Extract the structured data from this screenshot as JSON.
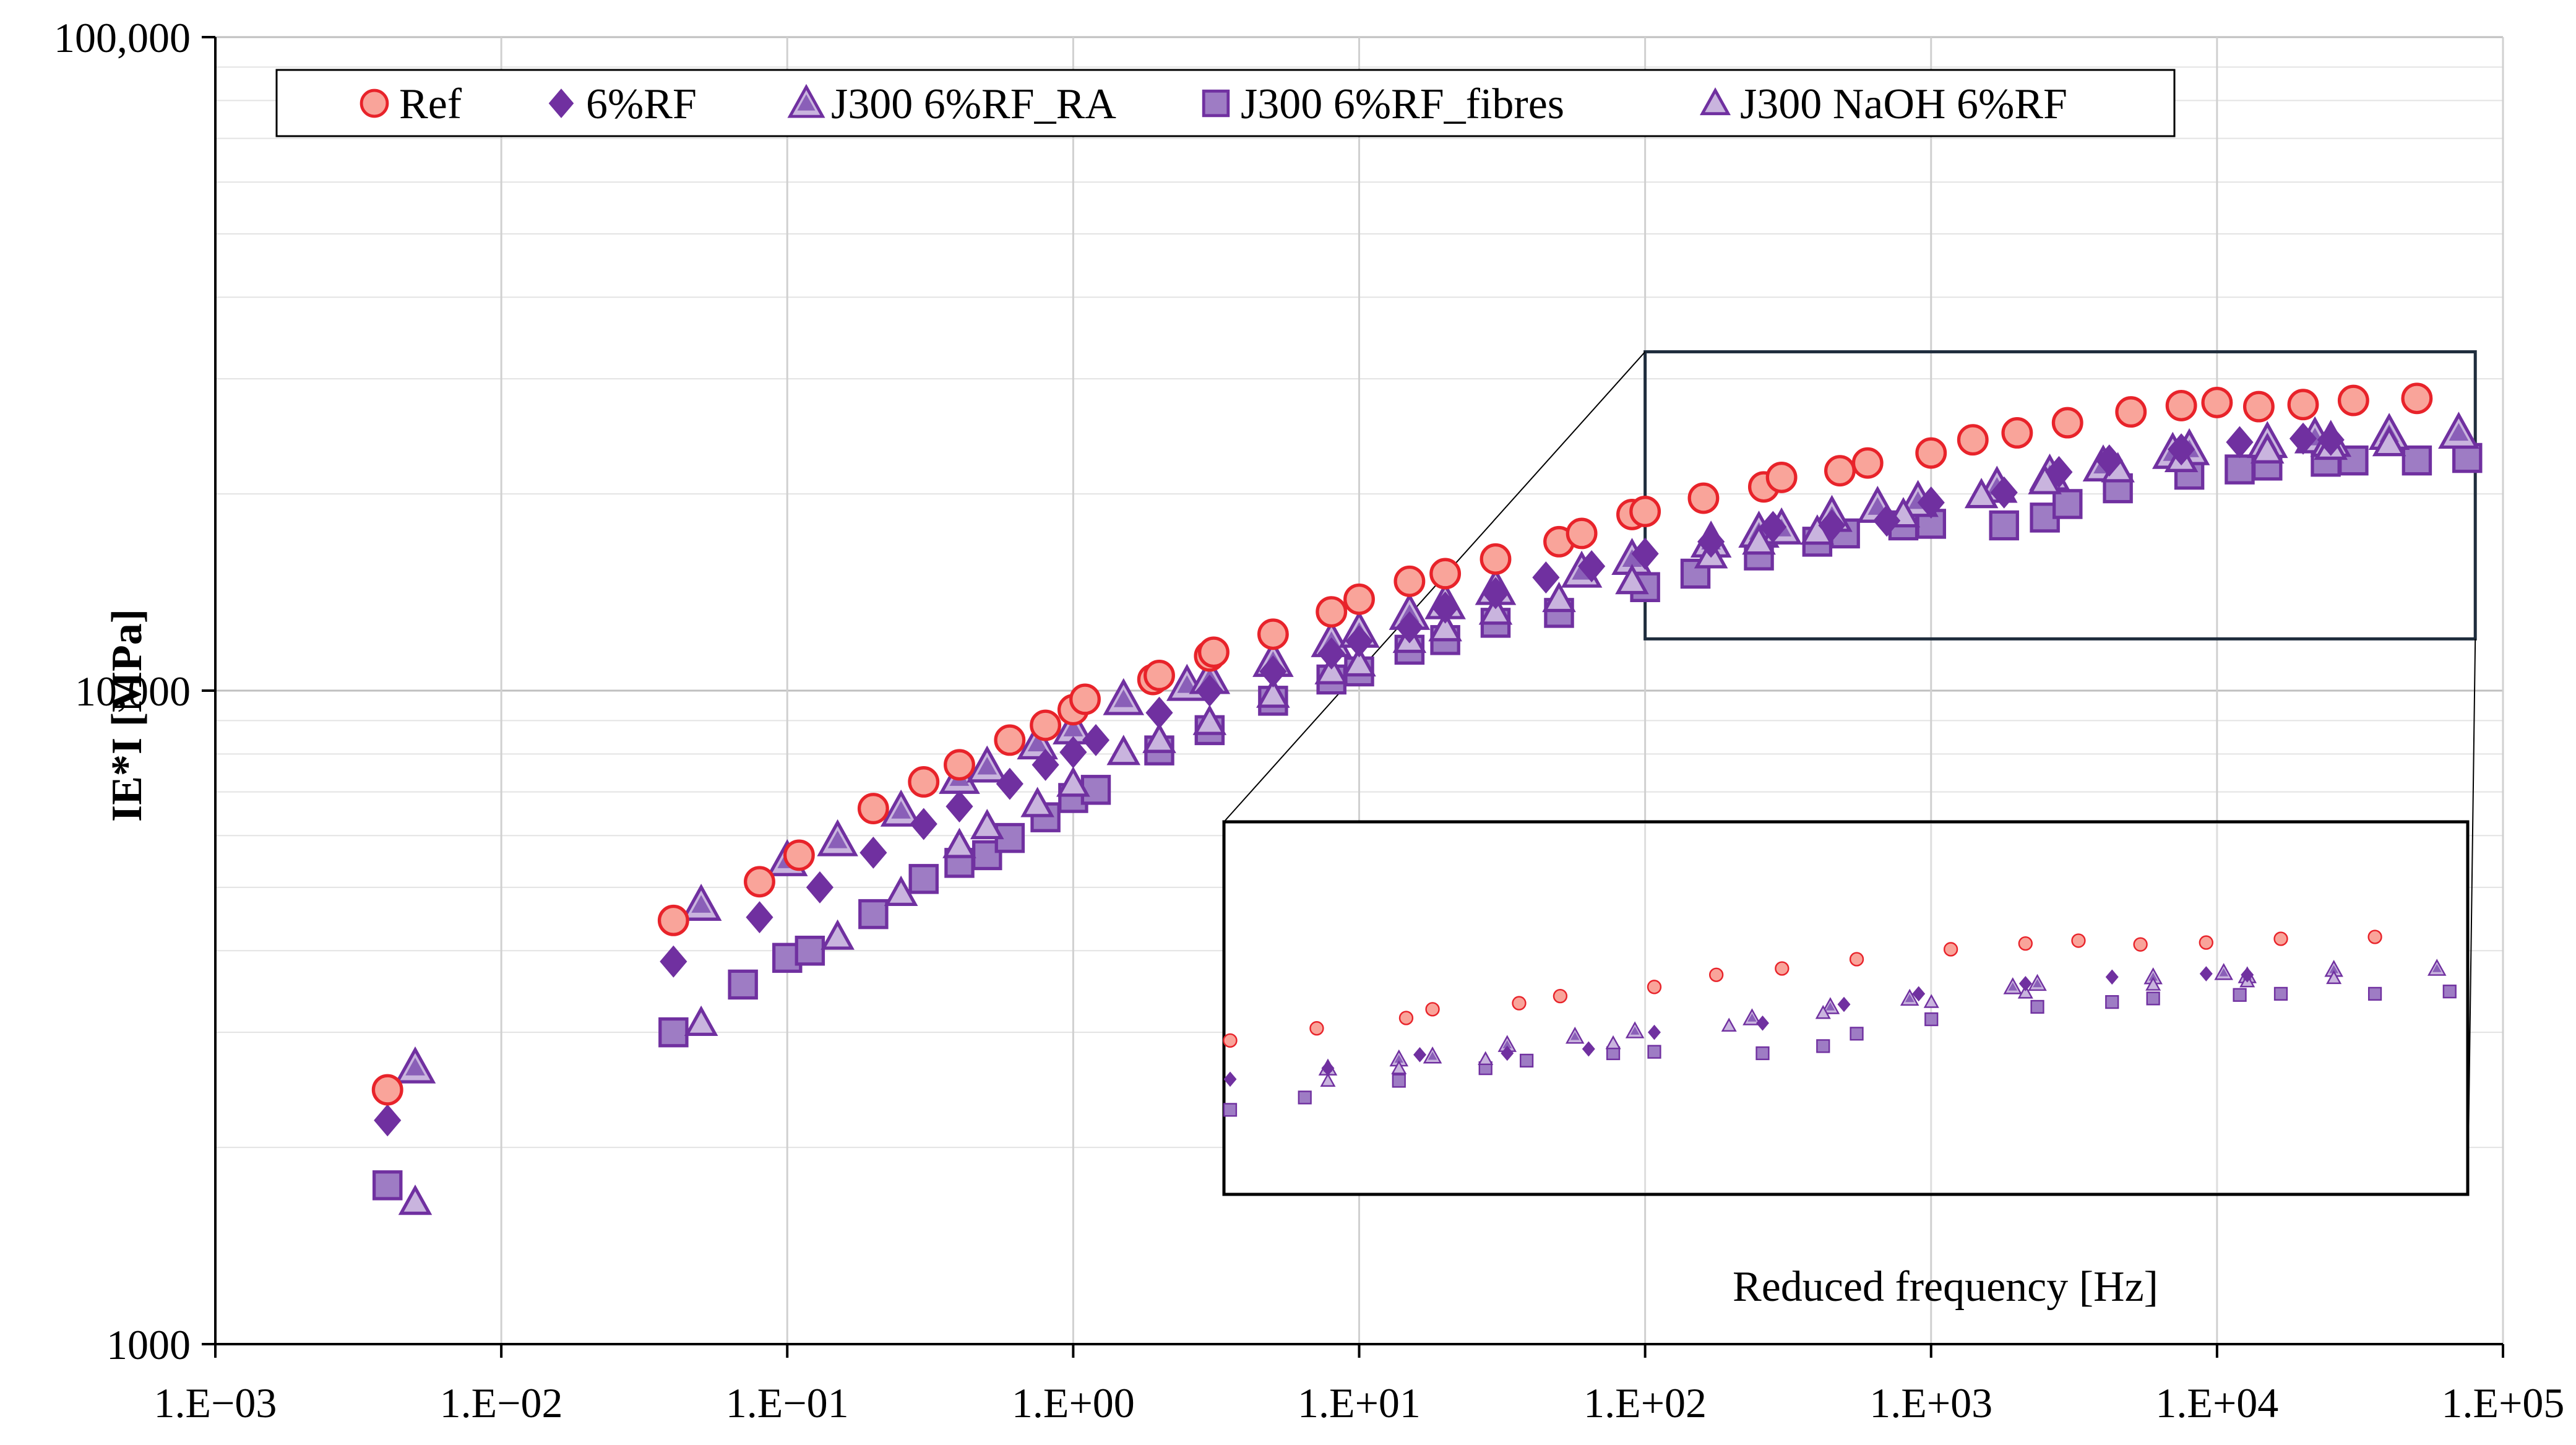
{
  "chart_data": {
    "type": "scatter",
    "title": "",
    "xlabel": "Reduced frequency [Hz]",
    "ylabel": "IE*I [MPa]",
    "xscale": "log",
    "yscale": "log",
    "xlim": [
      0.001,
      100000
    ],
    "ylim": [
      1000,
      100000
    ],
    "grid": "horizontal-major-and-minor",
    "legend_position": "top",
    "x_tick_labels": [
      "1.E−03",
      "1.E−02",
      "1.E−01",
      "1.E+00",
      "1.E+01",
      "1.E+02",
      "1.E+03",
      "1.E+04",
      "1.E+05"
    ],
    "y_tick_labels": [
      "1000",
      "10,000",
      "100,000"
    ],
    "zoom_region": {
      "xlim": [
        100,
        80000
      ],
      "ylim": [
        12000,
        33000
      ]
    },
    "series": [
      {
        "name": "Ref",
        "marker": "circle",
        "color": "#e8232a",
        "fill": "#f9a49a",
        "x": [
          0.004,
          0.04,
          0.08,
          0.11,
          0.2,
          0.3,
          0.4,
          0.6,
          0.8,
          1.0,
          1.1,
          1.9,
          2.0,
          3.0,
          3.1,
          5.0,
          8.0,
          10,
          15,
          20,
          30,
          50,
          60,
          90,
          100,
          160,
          260,
          300,
          480,
          600,
          1000,
          1400,
          2000,
          3000,
          5000,
          7500,
          10000,
          14000,
          20000,
          30000,
          50000
        ],
        "y": [
          2450,
          4450,
          5100,
          5600,
          6600,
          7250,
          7700,
          8400,
          8850,
          9350,
          9700,
          10400,
          10550,
          11300,
          11450,
          12200,
          13200,
          13800,
          14700,
          15100,
          15900,
          16900,
          17400,
          18600,
          18800,
          19700,
          20500,
          21200,
          21700,
          22300,
          23100,
          24200,
          24800,
          25700,
          26700,
          27300,
          27600,
          27200,
          27400,
          27800,
          28000
        ]
      },
      {
        "name": "6%RF",
        "marker": "diamond",
        "color": "#7030a0",
        "fill": "#7030a0",
        "x": [
          0.004,
          0.04,
          0.08,
          0.13,
          0.2,
          0.3,
          0.4,
          0.6,
          0.8,
          1.0,
          1.2,
          2.0,
          3.0,
          5.0,
          8.0,
          10,
          15,
          20,
          30,
          45,
          65,
          100,
          170,
          280,
          450,
          700,
          1000,
          1800,
          2800,
          4200,
          7500,
          12000,
          20000,
          25000
        ],
        "y": [
          2200,
          3850,
          4500,
          5000,
          5650,
          6250,
          6650,
          7200,
          7700,
          8050,
          8400,
          9250,
          10000,
          10700,
          11400,
          11900,
          12500,
          13400,
          14100,
          14900,
          15500,
          16200,
          16900,
          17800,
          17900,
          18200,
          19400,
          20100,
          21600,
          22500,
          23400,
          24000,
          24300,
          24200
        ]
      },
      {
        "name": "J300 6%RF_RA",
        "marker": "triangle",
        "color": "#7030a0",
        "fill": "#c9b4de",
        "x": [
          0.005,
          0.05,
          0.1,
          0.15,
          0.25,
          0.4,
          0.5,
          0.75,
          1.0,
          1.5,
          2.5,
          3.0,
          5.0,
          8.0,
          10,
          15,
          20,
          30,
          60,
          90,
          170,
          250,
          300,
          450,
          650,
          900,
          1700,
          2600,
          4000,
          7000,
          8000,
          15000,
          22000,
          25000,
          40000,
          70000
        ],
        "y": [
          2650,
          4700,
          5500,
          5900,
          6550,
          7350,
          7650,
          8300,
          8750,
          9700,
          10200,
          10450,
          11100,
          11900,
          12300,
          13100,
          13600,
          14300,
          15200,
          15900,
          16900,
          17500,
          17700,
          18500,
          19100,
          19500,
          20500,
          21400,
          22100,
          23100,
          23400,
          24000,
          24400,
          24100,
          24700,
          24800
        ]
      },
      {
        "name": "J300 6%RF_fibres",
        "marker": "square",
        "color": "#7030a0",
        "fill": "#9e7cc4",
        "x": [
          0.004,
          0.04,
          0.07,
          0.1,
          0.12,
          0.2,
          0.3,
          0.4,
          0.5,
          0.6,
          0.8,
          1.0,
          1.2,
          2.0,
          3.0,
          5.0,
          8.0,
          10,
          15,
          20,
          30,
          50,
          100,
          150,
          250,
          400,
          500,
          800,
          1000,
          1800,
          2500,
          3000,
          4500,
          8000,
          12000,
          15000,
          24000,
          30000,
          50000,
          75000
        ],
        "y": [
          1750,
          3000,
          3550,
          3900,
          4000,
          4550,
          5150,
          5450,
          5600,
          5950,
          6400,
          6850,
          7050,
          8100,
          8700,
          9650,
          10400,
          10700,
          11550,
          11950,
          12700,
          13150,
          14400,
          15100,
          16100,
          16900,
          17400,
          17900,
          18000,
          17900,
          18400,
          19300,
          20400,
          21400,
          21800,
          22100,
          22400,
          22500,
          22500,
          22700
        ]
      },
      {
        "name": "J300 NaOH 6%RF",
        "marker": "triangle-small",
        "color": "#7030a0",
        "fill": "#c9b4de",
        "x": [
          0.005,
          0.05,
          0.15,
          0.25,
          0.4,
          0.5,
          0.75,
          1.0,
          1.5,
          2.0,
          3.0,
          5.0,
          8.0,
          10,
          15,
          20,
          30,
          50,
          90,
          170,
          250,
          400,
          800,
          1500,
          2500,
          4500,
          7500,
          15000,
          25000,
          40000
        ],
        "y": [
          1650,
          3100,
          4200,
          4900,
          5800,
          6200,
          6700,
          7200,
          8050,
          8400,
          8950,
          9850,
          10700,
          11000,
          11950,
          12450,
          13200,
          13800,
          14700,
          16100,
          16900,
          17500,
          18600,
          19900,
          20900,
          21800,
          22600,
          23300,
          23600,
          23900
        ]
      }
    ]
  }
}
